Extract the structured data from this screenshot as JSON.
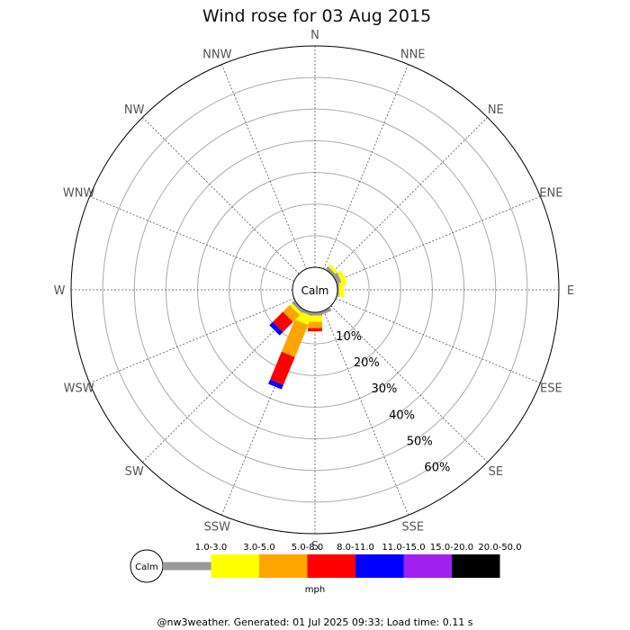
{
  "chart_data": {
    "type": "wind-rose",
    "title": "Wind rose for 03 Aug 2015",
    "directions": [
      "N",
      "NNE",
      "NE",
      "ENE",
      "E",
      "ESE",
      "SE",
      "SSE",
      "S",
      "SSW",
      "SW",
      "WSW",
      "W",
      "WNW",
      "NW",
      "NNW"
    ],
    "rings": [
      {
        "value": 10,
        "label": "10%"
      },
      {
        "value": 20,
        "label": "20%"
      },
      {
        "value": 30,
        "label": "30%"
      },
      {
        "value": 40,
        "label": "40%"
      },
      {
        "value": 50,
        "label": "50%"
      },
      {
        "value": 60,
        "label": "60%"
      }
    ],
    "rmax": 70,
    "calm_label": "Calm",
    "unit": "mph",
    "speed_bins": [
      {
        "label": "1.0-3.0",
        "color": "#999999"
      },
      {
        "label": "3.0-5.0",
        "color": "#ffff00"
      },
      {
        "label": "5.0-8.0",
        "color": "#ffa500"
      },
      {
        "label": "8.0-11.0",
        "color": "#ff0000"
      },
      {
        "label": "11.0-15.0",
        "color": "#0000ff"
      },
      {
        "label": "15.0-20.0",
        "color": "#a020f0"
      },
      {
        "label": "20.0-50.0",
        "color": "#000000"
      }
    ],
    "series": [
      {
        "direction": "NE",
        "values": [
          1.0,
          1.0,
          0,
          0,
          0,
          0,
          0
        ]
      },
      {
        "direction": "ENE",
        "values": [
          1.5,
          1.5,
          0,
          0,
          0,
          0,
          0
        ]
      },
      {
        "direction": "E",
        "values": [
          0.5,
          1.5,
          0,
          0,
          0,
          0,
          0
        ]
      },
      {
        "direction": "SSE",
        "values": [
          1.0,
          0,
          0,
          0,
          0,
          0,
          0
        ]
      },
      {
        "direction": "S",
        "values": [
          1.0,
          2.0,
          2.0,
          1.0,
          0,
          0,
          0
        ]
      },
      {
        "direction": "SSW",
        "values": [
          1.0,
          3.0,
          11.0,
          9.5,
          1.5,
          0,
          0
        ]
      },
      {
        "direction": "SW",
        "values": [
          1.0,
          1.0,
          3.0,
          4.5,
          1.5,
          0,
          0
        ]
      }
    ]
  },
  "footer": "@nw3weather. Generated: 01 Jul 2025 09:33; Load time: 0.11 s"
}
